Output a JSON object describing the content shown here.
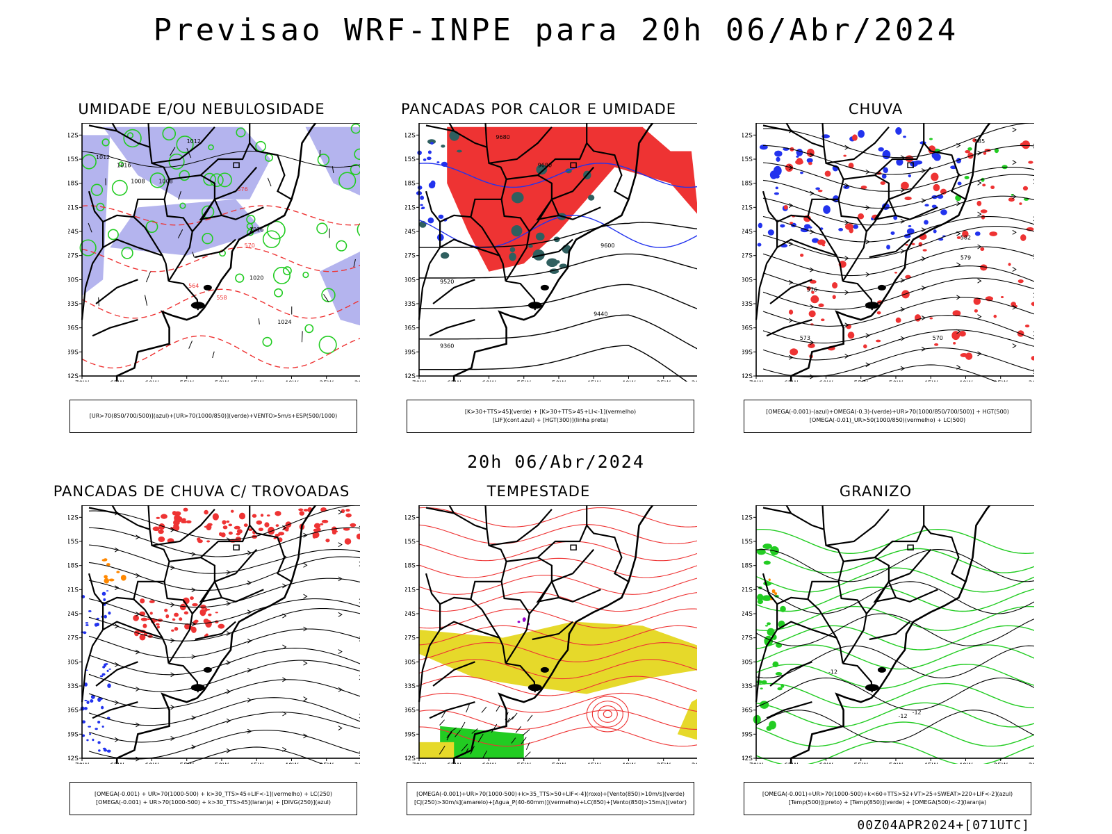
{
  "header": {
    "title": "Previsao WRF-INPE  para 20h 06/Abr/2024"
  },
  "subtitle": "20h 06/Abr/2024",
  "footer": "00Z04APR2024+[071UTC]",
  "axes": {
    "lat_labels": [
      "12S",
      "15S",
      "18S",
      "21S",
      "24S",
      "27S",
      "30S",
      "33S",
      "36S",
      "39S",
      "42S"
    ],
    "lon_labels": [
      "70W",
      "65W",
      "60W",
      "55W",
      "50W",
      "45W",
      "40W",
      "35W",
      "30W"
    ]
  },
  "panels": [
    {
      "id": "umidade",
      "title": "UMIDADE E/OU NEBULOSIDADE",
      "legend": [
        "[UR>70(850/700/500)](azul)+[UR>70(1000/850)](verde)+VENTO>5m/s+ESP(500/1000)"
      ],
      "contour_labels": [
        "1012",
        "1012",
        "1016",
        "1008",
        "1008",
        "1016",
        "576",
        "570",
        "564",
        "558",
        "1020",
        "1024"
      ]
    },
    {
      "id": "pancadas-calor",
      "title": "PANCADAS POR CALOR E UMIDADE",
      "legend": [
        "[K>30+TTS>45](verde) + [K>30+TTS>45+LI<-1](vermelho)",
        "[LIF](cont.azul) + [HGT(300)](linha preta)"
      ],
      "contour_labels": [
        "9680",
        "9680",
        "9600",
        "9520",
        "9440",
        "9360"
      ]
    },
    {
      "id": "chuva",
      "title": "CHUVA",
      "legend": [
        "[OMEGA(-0.001)-(azul)+OMEGA(-0.3)-(verde)+UR>70(1000/850/700/500)] + HGT(500)",
        "[OMEGA(-0.01)_UR>50(1000/850)(vermelho) + LC(500)"
      ],
      "contour_labels": [
        "585",
        "582",
        "579",
        "576",
        "573",
        "570"
      ]
    },
    {
      "id": "trovoadas",
      "title": "PANCADAS DE CHUVA C/ TROVOADAS",
      "legend": [
        "[OMEGA(-0.001) + UR>70(1000-500) + k>30_TTS>45+LIF<-1](vermelho) + LC(250)",
        "[OMEGA(-0.001) + UR>70(1000-500) + k>30_TTS>45](laranja) + [DIVG(250)](azul)"
      ],
      "contour_labels": []
    },
    {
      "id": "tempestade",
      "title": "TEMPESTADE",
      "legend": [
        "[OMEGA(-0.001)+UR>70(1000-500)+k>35_TTS>50+LIF<-4](roxo)+[Vento(850)>10m/s](verde)",
        "[CJ(250)>30m/s](amarelo)+[Agua_P(40-60mm)](vermelho)+LC(850)+[Vento(850)>15m/s](vetor)"
      ],
      "contour_labels": []
    },
    {
      "id": "granizo",
      "title": "GRANIZO",
      "legend": [
        "[OMEGA(-0.001)+UR>70(1000-500)+k<60+TTS>52+VT>25+SWEAT>220+LIF<-2](azul)",
        "[Temp(500)](preto) + [Temp(850)](verde) + [OMEGA(500)<-2](laranja)"
      ],
      "contour_labels": [
        "-12",
        "-12",
        "-12"
      ]
    }
  ],
  "colors": {
    "blue": "#2233ee",
    "green": "#22cc22",
    "red": "#ee3333",
    "orange": "#ff8800",
    "yellow": "#e6d92a",
    "purple": "#9900cc",
    "lavender": "#b4b4ee",
    "darkteal": "#2f5f5f"
  }
}
